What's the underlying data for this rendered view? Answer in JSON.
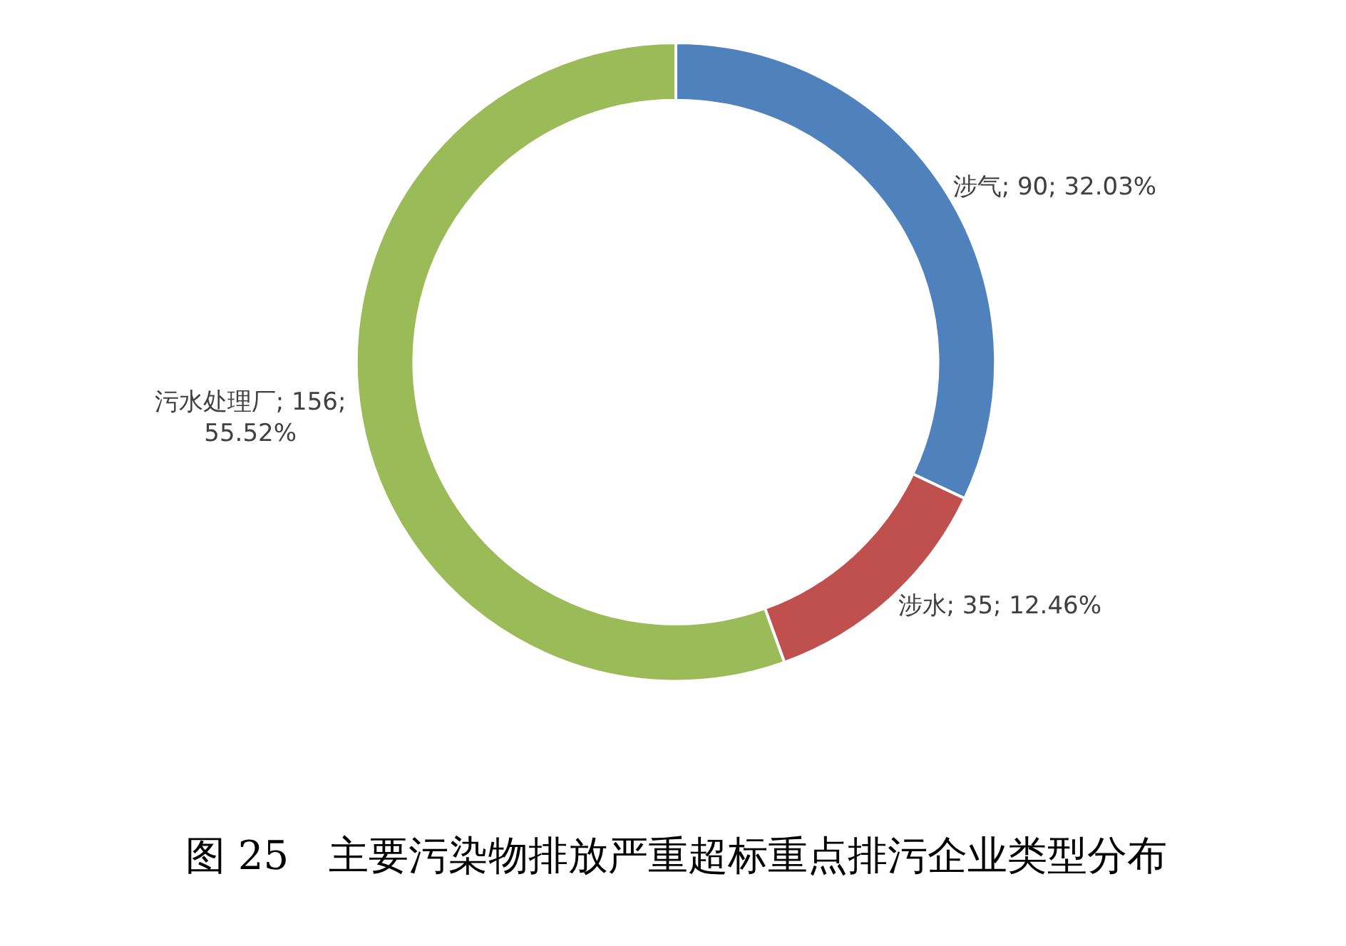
{
  "chart_data": {
    "type": "donut",
    "title": "图 25　主要污染物排放严重超标重点排污企业类型分布",
    "categories": [
      "涉气",
      "涉水",
      "污水处理厂"
    ],
    "values": [
      90,
      35,
      156
    ],
    "colors": [
      "#4f81bd",
      "#c0504d",
      "#9bbb59"
    ],
    "value_labels": [
      "90; 32.03%",
      "35; 12.46%",
      "156;\n55.52%"
    ],
    "legend": false
  }
}
